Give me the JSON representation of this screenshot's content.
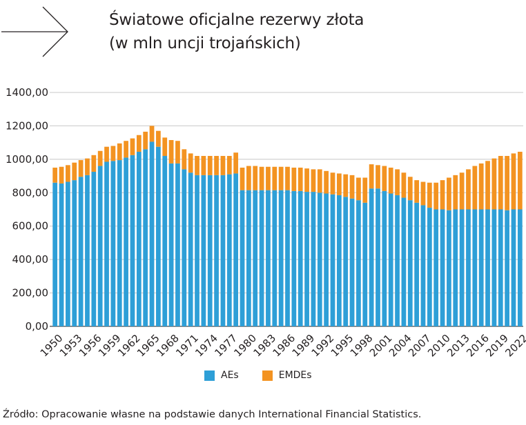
{
  "title_lines": [
    "Światowe oficjalne rezerwy złota",
    "(w mln uncji trojańskich)"
  ],
  "source": "Źródło: Opracowanie własne na podstawie danych International Financial Statistics.",
  "colors": {
    "AEs": "#2e9fd7",
    "EMDEs": "#f39321",
    "grid": "#c8c8c8",
    "axis": "#444444",
    "text": "#231f20"
  },
  "chart_data": {
    "type": "bar",
    "stacked": true,
    "categories": [
      1950,
      1951,
      1952,
      1953,
      1954,
      1955,
      1956,
      1957,
      1958,
      1959,
      1960,
      1961,
      1962,
      1963,
      1964,
      1965,
      1966,
      1967,
      1968,
      1969,
      1970,
      1971,
      1972,
      1973,
      1974,
      1975,
      1976,
      1977,
      1978,
      1979,
      1980,
      1981,
      1982,
      1983,
      1984,
      1985,
      1986,
      1987,
      1988,
      1989,
      1990,
      1991,
      1992,
      1993,
      1994,
      1995,
      1996,
      1997,
      1998,
      1999,
      2000,
      2001,
      2002,
      2003,
      2004,
      2005,
      2006,
      2007,
      2008,
      2009,
      2010,
      2011,
      2012,
      2013,
      2014,
      2015,
      2016,
      2017,
      2018,
      2019,
      2020,
      2021,
      2022
    ],
    "tick_labels": [
      "1950",
      "1953",
      "1956",
      "1959",
      "1962",
      "1965",
      "1968",
      "1971",
      "1974",
      "1977",
      "1980",
      "1983",
      "1986",
      "1989",
      "1992",
      "1995",
      "1998",
      "2001",
      "2004",
      "2007",
      "2010",
      "2013",
      "2016",
      "2019",
      "2022"
    ],
    "series": [
      {
        "name": "AEs",
        "color": "#2e9fd7",
        "values": [
          860,
          855,
          865,
          875,
          895,
          905,
          925,
          960,
          985,
          990,
          995,
          1010,
          1025,
          1045,
          1060,
          1105,
          1075,
          1020,
          975,
          975,
          940,
          920,
          905,
          905,
          905,
          905,
          905,
          910,
          915,
          815,
          815,
          815,
          815,
          815,
          815,
          815,
          815,
          810,
          810,
          805,
          805,
          800,
          795,
          790,
          785,
          775,
          765,
          755,
          740,
          825,
          825,
          810,
          795,
          785,
          770,
          755,
          740,
          725,
          710,
          700,
          700,
          695,
          700,
          700,
          700,
          700,
          700,
          700,
          700,
          700,
          695,
          700,
          700
        ]
      },
      {
        "name": "EMDEs",
        "color": "#f39321",
        "values": [
          90,
          100,
          100,
          105,
          100,
          100,
          100,
          90,
          90,
          90,
          100,
          100,
          100,
          100,
          105,
          95,
          95,
          110,
          140,
          135,
          120,
          115,
          115,
          115,
          115,
          115,
          115,
          110,
          125,
          135,
          145,
          145,
          140,
          140,
          140,
          140,
          140,
          140,
          140,
          140,
          135,
          140,
          135,
          130,
          130,
          135,
          140,
          135,
          150,
          145,
          140,
          150,
          155,
          155,
          150,
          140,
          135,
          140,
          150,
          160,
          175,
          195,
          205,
          220,
          240,
          260,
          275,
          290,
          305,
          320,
          325,
          335,
          345
        ]
      }
    ],
    "ylim": [
      0,
      1400
    ],
    "yticks": [
      0,
      200,
      400,
      600,
      800,
      1000,
      1200,
      1400
    ],
    "ytick_labels": [
      "0,00",
      "200,00",
      "400,00",
      "600,00",
      "800,00",
      "1000,00",
      "1200,00",
      "1400,00"
    ],
    "grid": true,
    "legend_position": "bottom"
  }
}
